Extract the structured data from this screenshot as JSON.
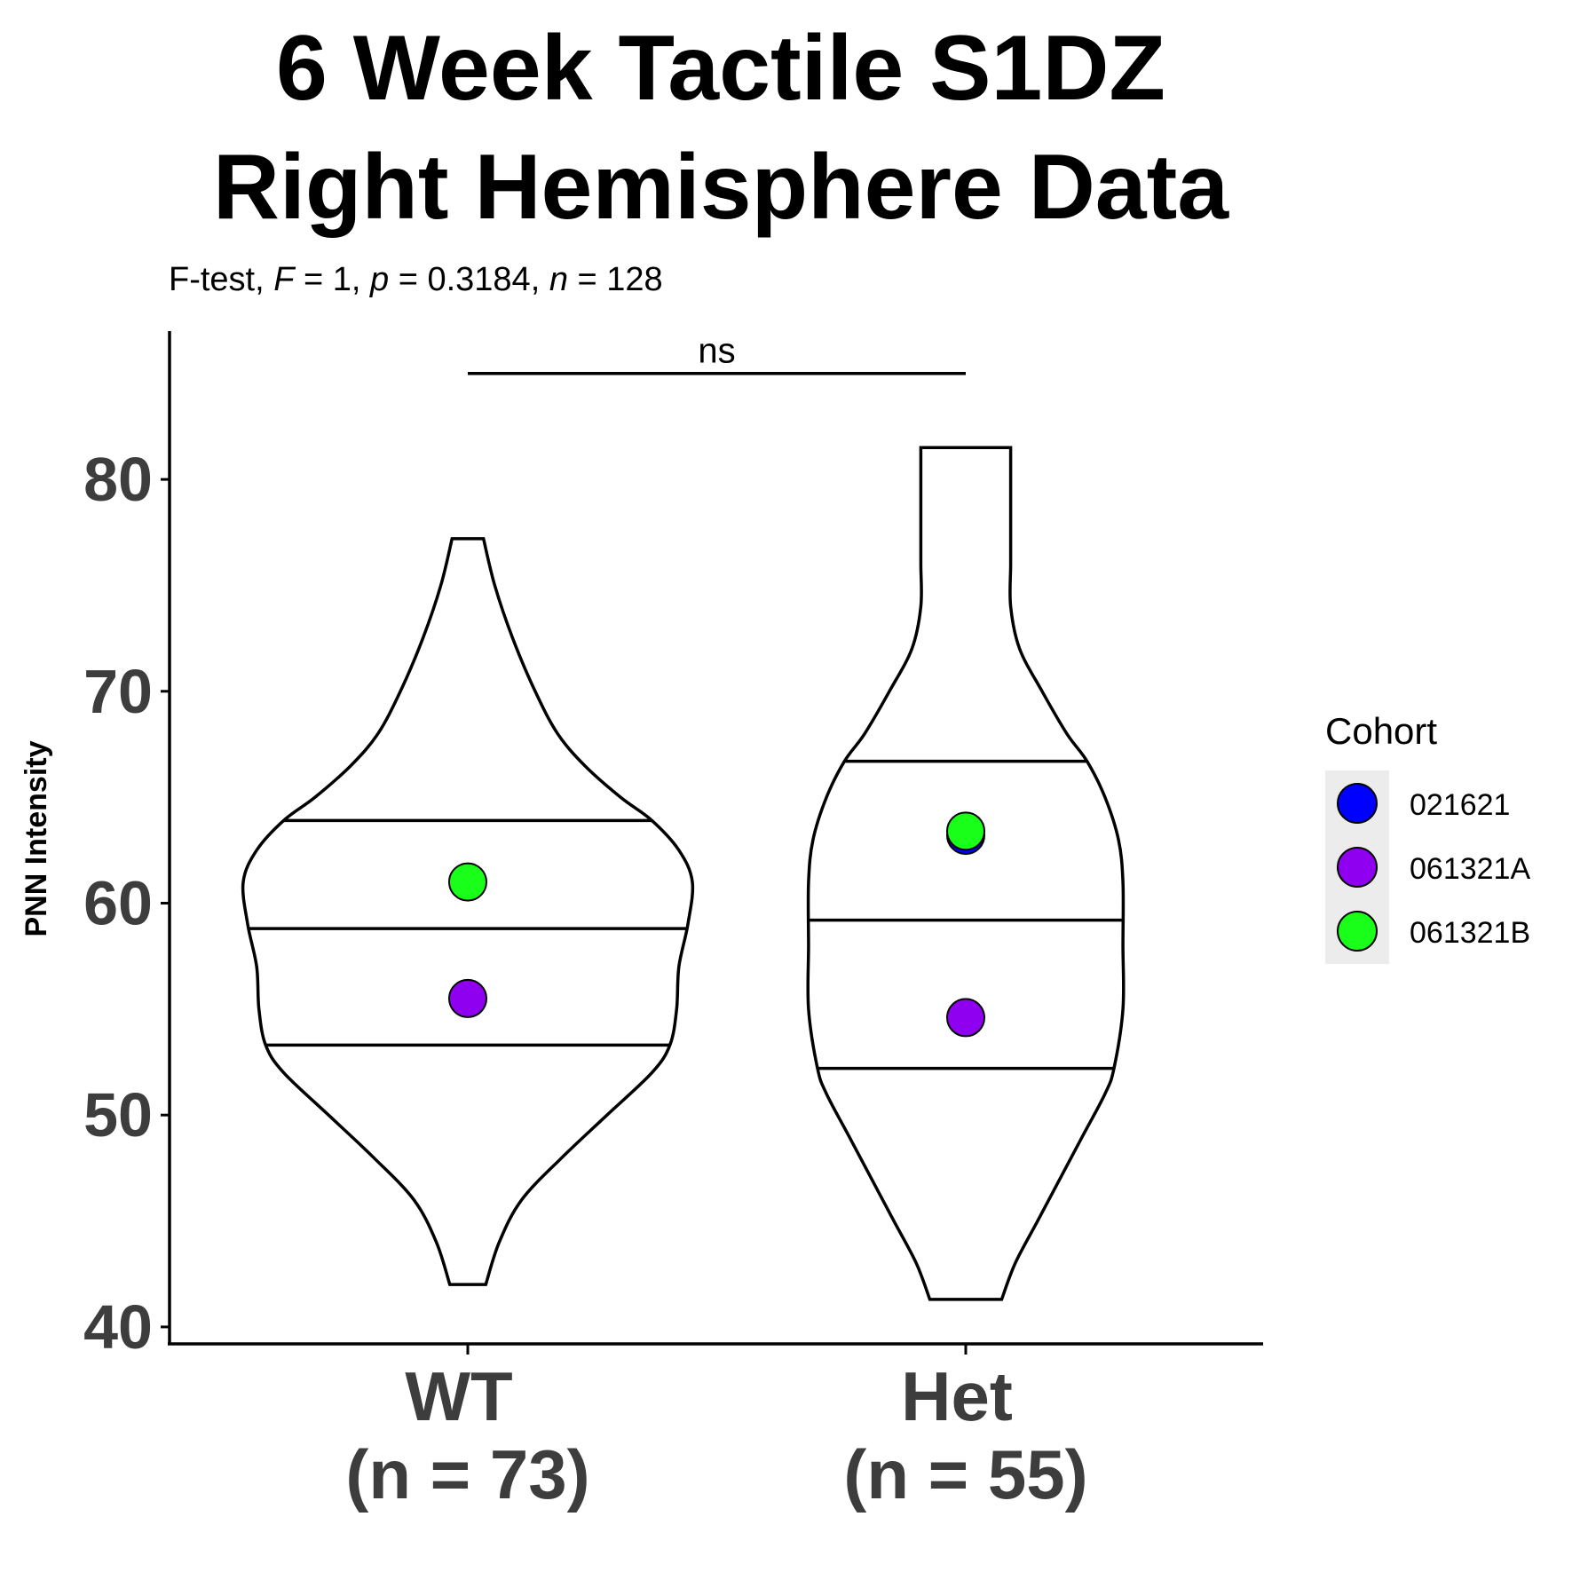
{
  "chart_data": {
    "type": "violin",
    "title_lines": [
      "6 Week Tactile S1DZ",
      "Right Hemisphere Data"
    ],
    "subtitle": {
      "prefix": "F-test, ",
      "F_sym": "F",
      "F_val": " = 1, ",
      "p_sym": "p",
      "p_val": " = 0.3184, ",
      "n_sym": "n",
      "n_val": " = 128"
    },
    "ylabel": "PNN Intensity",
    "xlabel": "",
    "ylim": [
      39.2,
      87.0
    ],
    "yticks": [
      40,
      50,
      60,
      70,
      80
    ],
    "grid": false,
    "categories": [
      {
        "label_line1": "WT",
        "label_line2": "(n = 73)",
        "quantiles": [
          53.3,
          58.8,
          63.9
        ],
        "range": [
          42.0,
          77.2
        ],
        "density": [
          [
            42.0,
            0.08
          ],
          [
            44.0,
            0.14
          ],
          [
            46.0,
            0.24
          ],
          [
            48.0,
            0.42
          ],
          [
            50.0,
            0.62
          ],
          [
            52.0,
            0.82
          ],
          [
            53.3,
            0.9
          ],
          [
            55.0,
            0.93
          ],
          [
            57.0,
            0.94
          ],
          [
            59.0,
            0.98
          ],
          [
            61.0,
            1.0
          ],
          [
            62.5,
            0.94
          ],
          [
            63.9,
            0.82
          ],
          [
            65.0,
            0.68
          ],
          [
            66.5,
            0.52
          ],
          [
            68.0,
            0.4
          ],
          [
            70.0,
            0.3
          ],
          [
            72.5,
            0.2
          ],
          [
            75.0,
            0.12
          ],
          [
            77.2,
            0.07
          ]
        ],
        "points": [
          {
            "cohort": "061321A",
            "value": 55.5
          },
          {
            "cohort": "061321B",
            "value": 61.0
          }
        ]
      },
      {
        "label_line1": "Het",
        "label_line2": "(n = 55)",
        "quantiles": [
          52.2,
          59.2,
          66.7
        ],
        "range": [
          41.3,
          81.5
        ],
        "density": [
          [
            41.3,
            0.16
          ],
          [
            43.0,
            0.22
          ],
          [
            45.0,
            0.32
          ],
          [
            47.0,
            0.42
          ],
          [
            49.0,
            0.52
          ],
          [
            51.0,
            0.62
          ],
          [
            52.2,
            0.66
          ],
          [
            55.0,
            0.7
          ],
          [
            58.0,
            0.7
          ],
          [
            61.0,
            0.7
          ],
          [
            63.0,
            0.68
          ],
          [
            65.0,
            0.62
          ],
          [
            66.7,
            0.54
          ],
          [
            68.0,
            0.45
          ],
          [
            70.0,
            0.34
          ],
          [
            72.0,
            0.24
          ],
          [
            74.0,
            0.2
          ],
          [
            76.0,
            0.2
          ],
          [
            78.0,
            0.2
          ],
          [
            80.0,
            0.2
          ],
          [
            81.5,
            0.2
          ]
        ],
        "points": [
          {
            "cohort": "061321A",
            "value": 54.6
          },
          {
            "cohort": "021621",
            "value": 63.2
          },
          {
            "cohort": "061321B",
            "value": 63.4
          }
        ]
      }
    ],
    "significance": {
      "label": "ns",
      "y": 85.0
    },
    "legend": {
      "title": "Cohort",
      "position": "right",
      "items": [
        {
          "label": "021621",
          "color": "#0000ff"
        },
        {
          "label": "061321A",
          "color": "#8f00f0"
        },
        {
          "label": "061321B",
          "color": "#1aff1a"
        }
      ]
    }
  }
}
